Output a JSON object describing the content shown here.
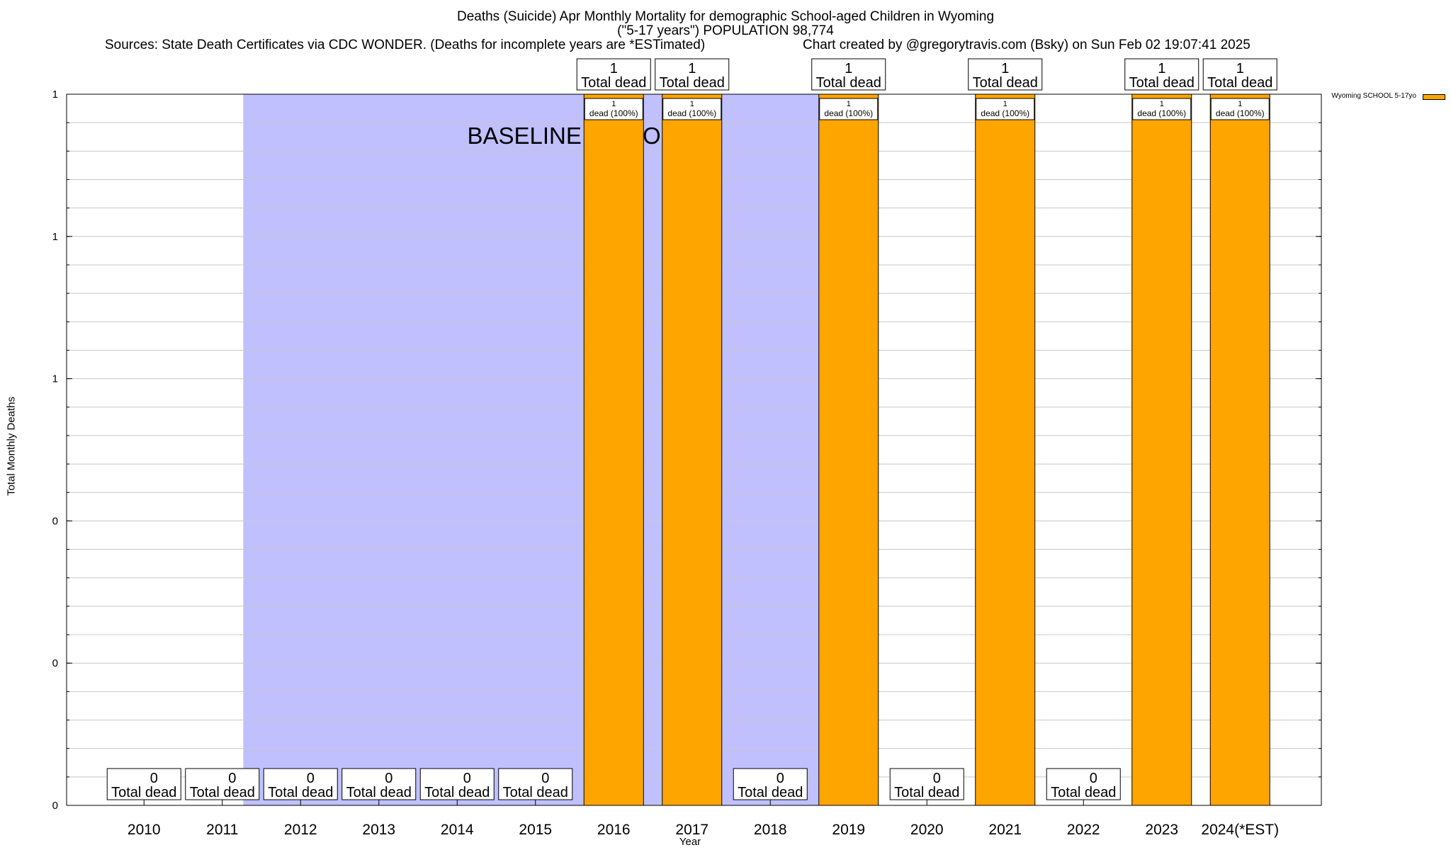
{
  "chart_data": {
    "type": "bar",
    "title": "Deaths (Suicide) Apr Monthly Mortality for demographic School-aged Children in Wyoming",
    "subtitle": "(\"5-17 years\") POPULATION 98,774",
    "sources": "Sources: State Death Certificates via CDC WONDER. (Deaths for incomplete years are *ESTimated)",
    "credit": "Chart created by @gregorytravis.com (Bsky) on Sun Feb 02 19:07:41 2025",
    "xlabel": "Year",
    "ylabel": "Total Monthly Deaths",
    "categories": [
      "2010",
      "2011",
      "2012",
      "2013",
      "2014",
      "2015",
      "2016",
      "2017",
      "2018",
      "2019",
      "2020",
      "2021",
      "2022",
      "2023",
      "2024(*EST)"
    ],
    "series": [
      {
        "name": "Wyoming SCHOOL 5-17yo",
        "color": "#ffa500",
        "values": [
          0,
          0,
          0,
          0,
          0,
          0,
          1,
          1,
          0,
          1,
          0,
          1,
          0,
          1,
          1
        ]
      }
    ],
    "ylim": [
      0,
      1
    ],
    "ytick_labels": [
      "0",
      "0",
      "0",
      "1",
      "1",
      "1"
    ],
    "total_label": "Total dead",
    "bar_label": "dead (100%)",
    "baseline_label": "BASELINE PERIOD",
    "baseline_spans": [
      [
        "2012",
        "2019"
      ]
    ],
    "baseline_color": "#c0c0ff",
    "grid": true,
    "legend_position": "top-right"
  }
}
